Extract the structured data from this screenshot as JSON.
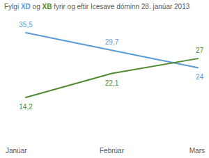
{
  "chart_data": {
    "type": "line",
    "title": "Fylgi XD og XB fyrir og eftir Icesave dóminn 28. janúar 2013",
    "categories": [
      "Janúar",
      "Febrúar",
      "Mars"
    ],
    "series": [
      {
        "name": "XD",
        "color": "#5b9bd5",
        "values": [
          35.5,
          29.7,
          24
        ],
        "value_labels": [
          "35,5",
          "29,7",
          "24"
        ]
      },
      {
        "name": "XB",
        "color": "#4f8a2f",
        "values": [
          14.2,
          22.1,
          27
        ],
        "value_labels": [
          "14,2",
          "22,1",
          "27"
        ]
      }
    ],
    "data_labels": true,
    "tick_labels": "x"
  }
}
